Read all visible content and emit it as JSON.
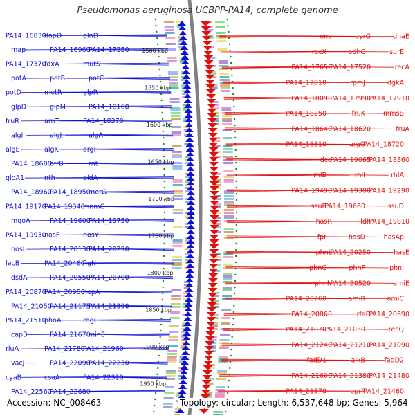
{
  "title": "Pseudomonas aeruginosa UCBPP-PA14, complete genome",
  "footer": {
    "accession": "Accession: NC_008463",
    "topology": "Topology: circular; Length: 6,537,648 bp; Genes: 5,964"
  },
  "colors": {
    "left_genes": "#1010d0",
    "right_genes": "#e01010",
    "backbone": "#808080",
    "ticks": "#1a8a1a"
  },
  "scale_labels": [
    "1500 kbp",
    "1550 kbp",
    "1600 kbp",
    "1650 kbp",
    "1700 kbp",
    "1750 kbp",
    "1800 kbp",
    "1850 kbp",
    "1900 kbp",
    "1950 kbp"
  ],
  "left_labels": [
    "PA14_16830",
    "dapD",
    "glnD",
    "map",
    "PA14_16960",
    "PA14_17350",
    "PA14_17370",
    "fdxA",
    "mutS",
    "potA",
    "potB",
    "potC",
    "potD",
    "metR",
    "glpR",
    "glpD",
    "glpM",
    "PA14_18160",
    "fruR",
    "arnT",
    "PA14_18370",
    "algI",
    "algJ",
    "algA",
    "algE",
    "algK",
    "argF",
    "PA14_18680",
    "bfrB",
    "rnt",
    "gloA1",
    "nth",
    "pldA",
    "PA14_18960",
    "PA14_18950",
    "metG",
    "PA14_19170",
    "PA14_19340",
    "mnmC",
    "mqoA",
    "PA14_19600",
    "PA14_19750",
    "PA14_19930",
    "nosF",
    "nosY",
    "nosL",
    "PA14_20130",
    "PA14_20290",
    "lecB",
    "PA14_20460",
    "flgN",
    "dsdA",
    "PA14_20550",
    "PA14_20700",
    "PA14_20870",
    "PA14_20980",
    "hepA",
    "PA14_21050",
    "PA14_21175",
    "PA14_21300",
    "PA14_21510",
    "phoA",
    "rdgC",
    "capB",
    "PA14_21670",
    "minE",
    "rluA",
    "PA14_21780",
    "PA14_21960",
    "vacJ",
    "PA14_22090",
    "PA14_22230",
    "cyaB",
    "csaA",
    "PA14_22320",
    "PA14_22560",
    "PA14_22680"
  ],
  "right_labels": [
    "dnaE",
    "pyrG",
    "eno",
    "surE",
    "adhC",
    "recX",
    "recA",
    "PA14_17520",
    "PA14_17650",
    "dgkA",
    "rpmJ",
    "PA14_17810",
    "PA14_17910",
    "PA14_17990",
    "PA14_18090",
    "mmsB",
    "fruK",
    "PA14_18250",
    "fruA",
    "PA14_18620",
    "PA14_18640",
    "PA14_18720",
    "argG",
    "PA14_18810",
    "PA14_18860",
    "PA14_19065",
    "dcd",
    "rhlA",
    "rhlI",
    "rhlB",
    "PA14_19290",
    "PA14_19380",
    "PA14_19490",
    "ssuD",
    "PA14_19660",
    "ssuB",
    "PA14_19810",
    "ldh",
    "hasR",
    "hasAp",
    "hasD",
    "fpr",
    "hasE",
    "PA14_20250",
    "phnL",
    "phnI",
    "phnF",
    "phnC",
    "amiE",
    "PA14_20520",
    "phnN",
    "amiC",
    "amiR",
    "PA14_20760",
    "PA14_20690",
    "rfaD",
    "PA14_20860",
    "recQ",
    "PA14_21030",
    "PA14_21070",
    "PA14_21090",
    "PA14_21210",
    "PA14_21240",
    "fadD2",
    "alkB",
    "fadD1",
    "PA14_21480",
    "PA14_21380",
    "PA14_21600",
    "PA14_21460",
    "oprP",
    "PA14_21570"
  ]
}
